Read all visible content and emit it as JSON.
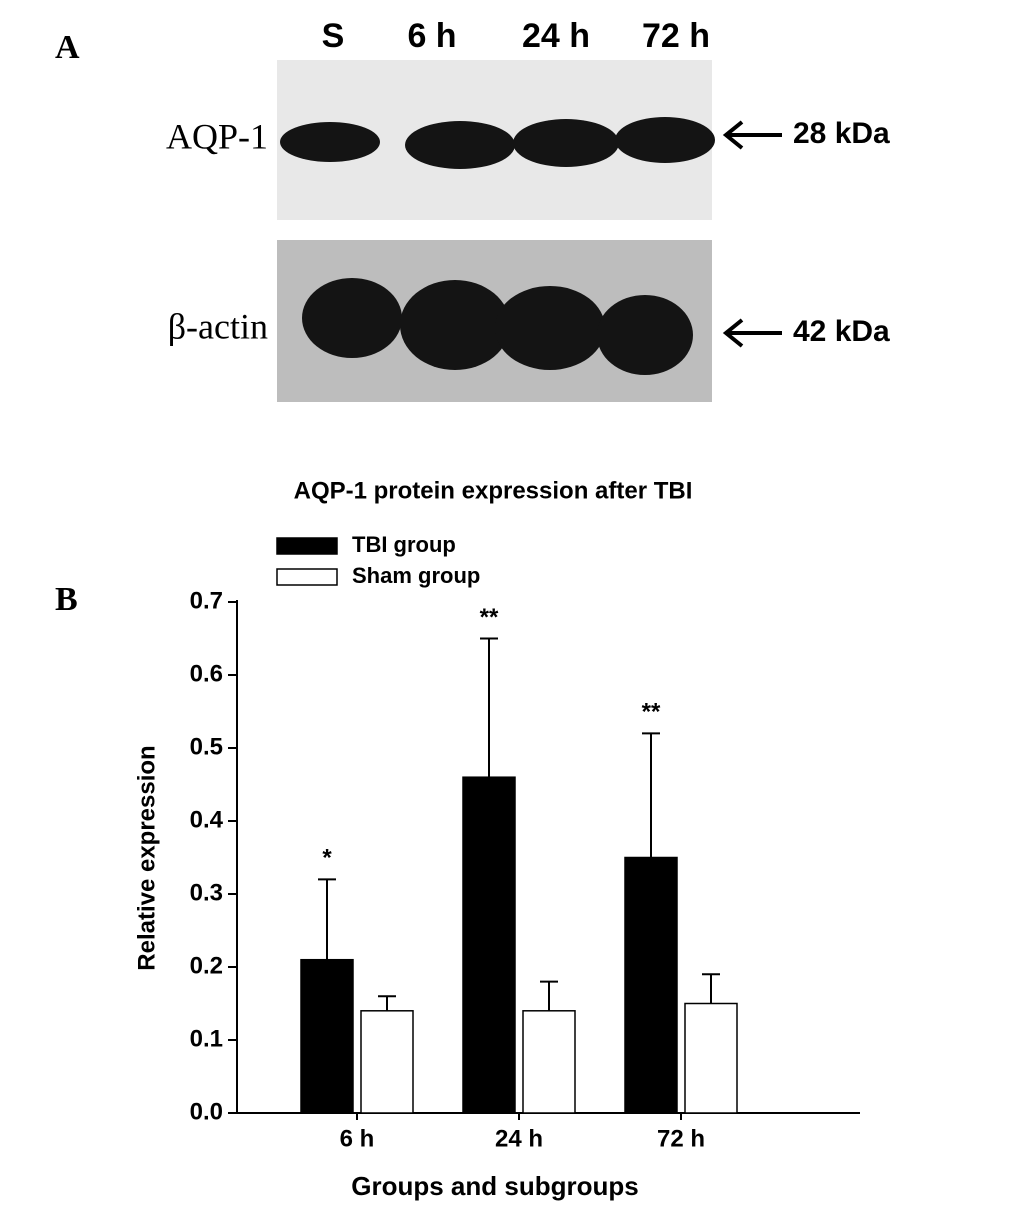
{
  "panel_a": {
    "label": "A",
    "lanes": [
      "S",
      "6 h",
      "24 h",
      "72 h"
    ],
    "rows": [
      {
        "label": "AQP-1",
        "size": "28 kDa"
      },
      {
        "label": "β-actin",
        "size": "42 kDa"
      }
    ]
  },
  "panel_b_label": "B",
  "chart_data": {
    "type": "bar",
    "title": "AQP-1 protein expression after TBI",
    "xlabel": "Groups and subgroups",
    "ylabel": "Relative expression",
    "categories": [
      "6 h",
      "24 h",
      "72 h"
    ],
    "series": [
      {
        "name": "TBI group",
        "color": "#000000",
        "values": [
          0.21,
          0.46,
          0.35
        ],
        "errors": [
          0.11,
          0.19,
          0.17
        ]
      },
      {
        "name": "Sham group",
        "color": "#ffffff",
        "values": [
          0.14,
          0.14,
          0.15
        ],
        "errors": [
          0.02,
          0.04,
          0.04
        ]
      }
    ],
    "annotations": [
      "*",
      "**",
      "**"
    ],
    "ylim": [
      0,
      0.7
    ],
    "yticks": [
      {
        "value": 0,
        "label": "0.0"
      },
      0.1,
      0.2,
      0.3,
      0.4,
      0.5,
      0.6,
      0.7
    ]
  }
}
